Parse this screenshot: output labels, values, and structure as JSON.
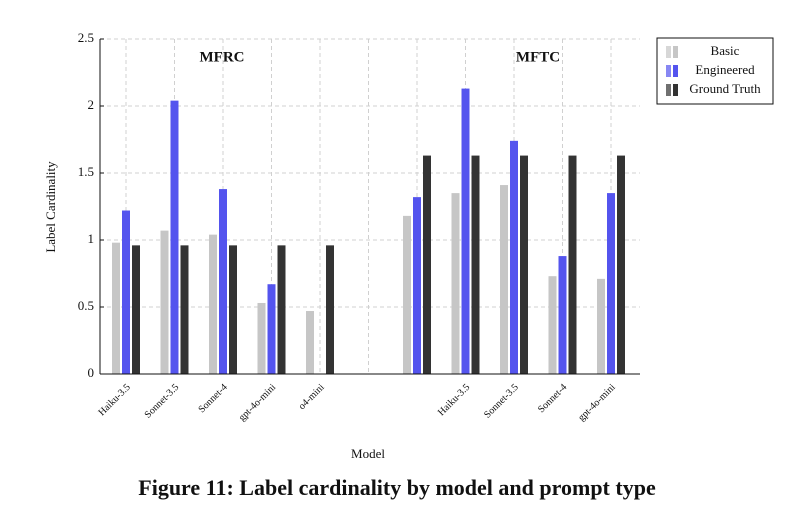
{
  "chart_data": {
    "type": "bar",
    "y_label": "Label Cardinality",
    "x_label": "Model",
    "caption": "Figure 11: Label cardinality by model and prompt type",
    "annotations": [
      "MFRC",
      "MFTC"
    ],
    "categories": [
      "Haiku-3.5",
      "Sonnet-3.5",
      "Sonnet-4",
      "gpt-4o-mini",
      "o4-mini",
      null,
      null,
      "Haiku-3.5",
      "Sonnet-3.5",
      "Sonnet-4",
      "gpt-4o-mini"
    ],
    "series": [
      {
        "name": "Basic",
        "color": "#c6c6c6",
        "values": [
          0.98,
          1.07,
          1.04,
          0.53,
          0.47,
          null,
          1.18,
          1.35,
          1.41,
          0.73,
          0.71
        ]
      },
      {
        "name": "Engineered",
        "color": "#5454ee",
        "values": [
          1.22,
          2.04,
          1.38,
          0.67,
          null,
          null,
          1.32,
          2.13,
          1.74,
          0.88,
          1.35
        ]
      },
      {
        "name": "Ground Truth",
        "color": "#333333",
        "values": [
          0.96,
          0.96,
          0.96,
          0.96,
          0.96,
          null,
          1.63,
          1.63,
          1.63,
          1.63,
          1.63
        ]
      }
    ],
    "ylim": [
      0,
      2.5
    ],
    "yticks": [
      0,
      0.5,
      1,
      1.5,
      2,
      2.5
    ],
    "grid": true,
    "legend": "upper right"
  }
}
